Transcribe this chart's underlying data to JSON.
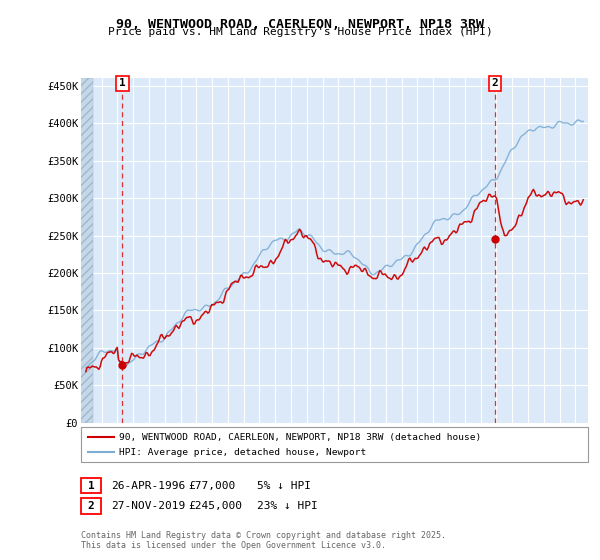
{
  "title1": "90, WENTWOOD ROAD, CAERLEON, NEWPORT, NP18 3RW",
  "title2": "Price paid vs. HM Land Registry's House Price Index (HPI)",
  "ylim": [
    0,
    460000
  ],
  "xlim_start": 1993.7,
  "xlim_end": 2025.8,
  "bg_color": "#dce9f8",
  "hatch_color": "#b8cfe0",
  "grid_color": "#ffffff",
  "sale1_x": 1996.32,
  "sale1_y": 77000,
  "sale2_x": 2019.92,
  "sale2_y": 245000,
  "legend_line1": "90, WENTWOOD ROAD, CAERLEON, NEWPORT, NP18 3RW (detached house)",
  "legend_line2": "HPI: Average price, detached house, Newport",
  "annotation1_label": "1",
  "annotation1_date": "26-APR-1996",
  "annotation1_price": "£77,000",
  "annotation1_hpi": "5% ↓ HPI",
  "annotation2_label": "2",
  "annotation2_date": "27-NOV-2019",
  "annotation2_price": "£245,000",
  "annotation2_hpi": "23% ↓ HPI",
  "footer": "Contains HM Land Registry data © Crown copyright and database right 2025.\nThis data is licensed under the Open Government Licence v3.0.",
  "red_line_color": "#cc0000",
  "blue_line_color": "#7dadd4",
  "sale_dot_color": "#cc0000"
}
